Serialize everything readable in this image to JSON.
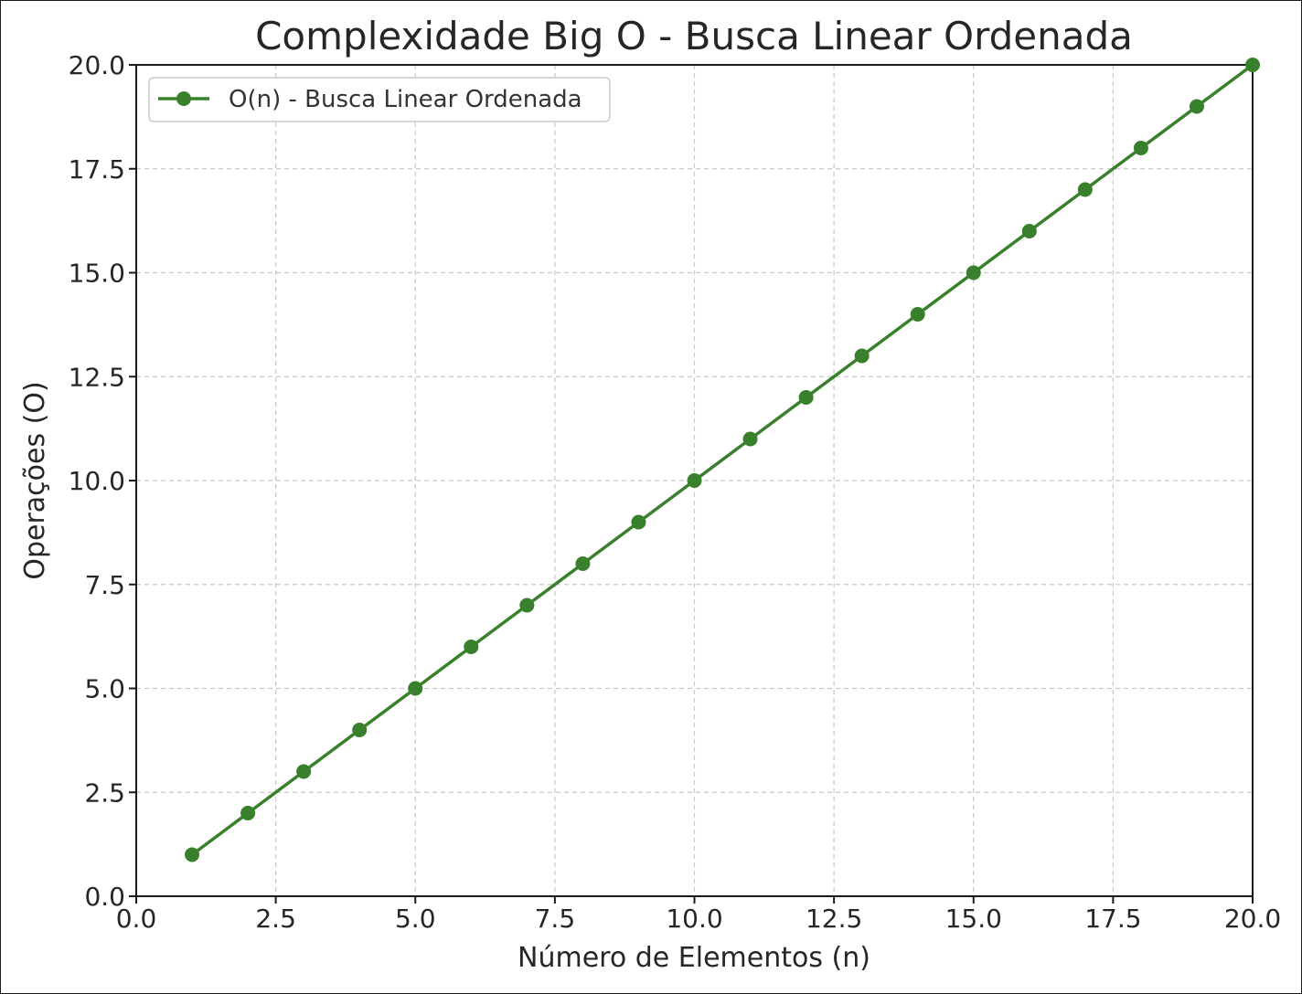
{
  "chart_data": {
    "type": "line",
    "title": "Complexidade Big O - Busca Linear Ordenada",
    "xlabel": "Número de Elementos (n)",
    "ylabel": "Operações (O)",
    "xlim": [
      0,
      20
    ],
    "ylim": [
      0,
      20
    ],
    "xticks": [
      "0.0",
      "2.5",
      "5.0",
      "7.5",
      "10.0",
      "12.5",
      "15.0",
      "17.5",
      "20.0"
    ],
    "yticks": [
      "0.0",
      "2.5",
      "5.0",
      "7.5",
      "10.0",
      "12.5",
      "15.0",
      "17.5",
      "20.0"
    ],
    "grid": true,
    "legend_position": "top-left",
    "series": [
      {
        "name": "O(n) - Busca Linear Ordenada",
        "color": "#38802b",
        "marker": "circle",
        "x": [
          1,
          2,
          3,
          4,
          5,
          6,
          7,
          8,
          9,
          10,
          11,
          12,
          13,
          14,
          15,
          16,
          17,
          18,
          19,
          20
        ],
        "y": [
          1,
          2,
          3,
          4,
          5,
          6,
          7,
          8,
          9,
          10,
          11,
          12,
          13,
          14,
          15,
          16,
          17,
          18,
          19,
          20
        ]
      }
    ]
  }
}
